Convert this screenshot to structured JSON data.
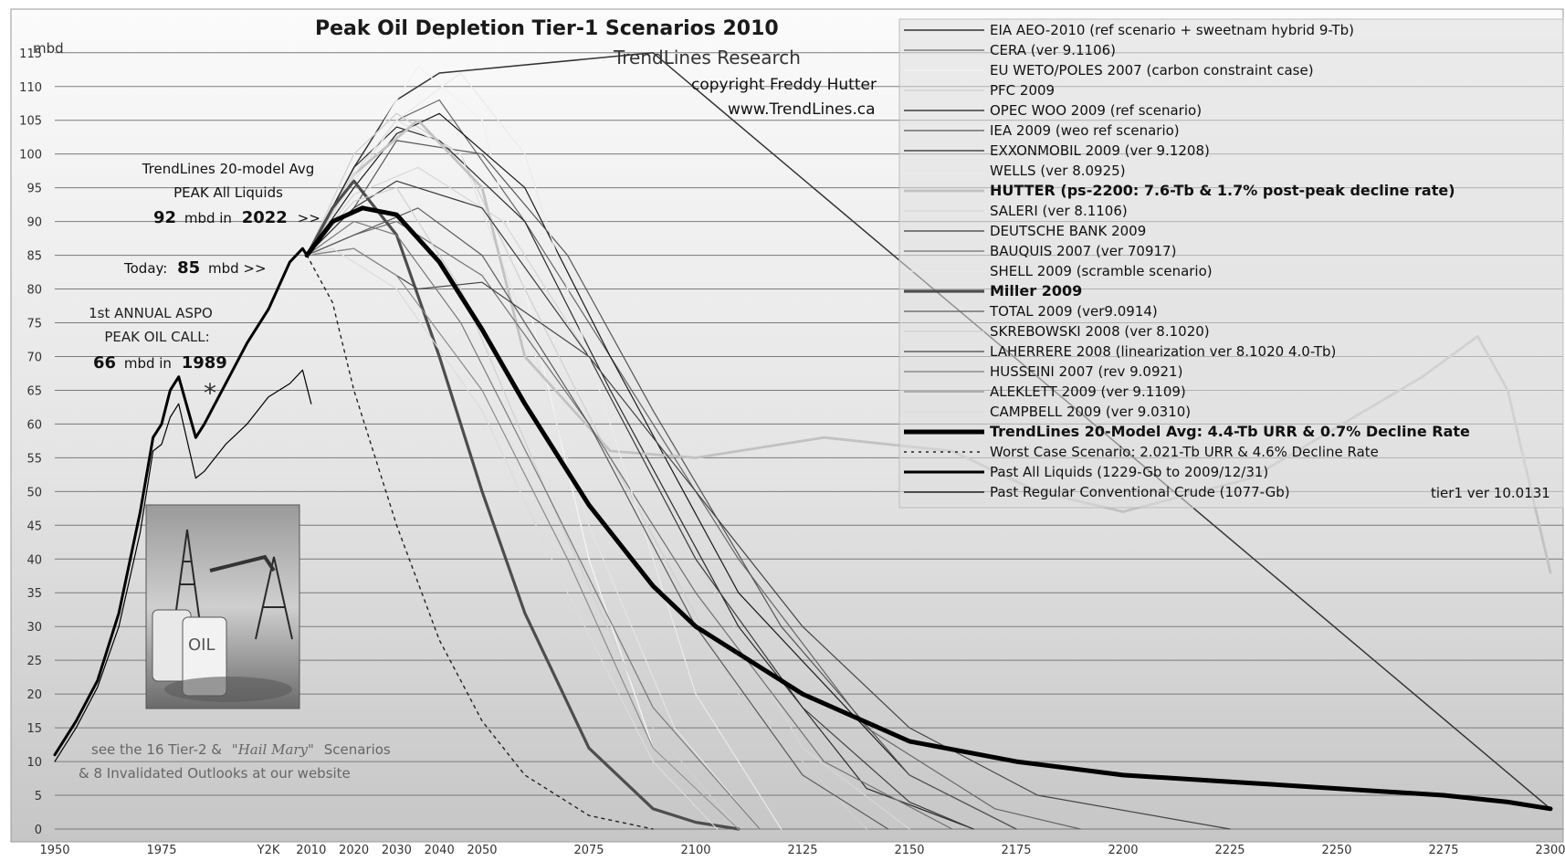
{
  "chart_data": {
    "type": "line",
    "title": "Peak Oil Depletion Tier-1 Scenarios 2010",
    "ylabel": "mbd",
    "xlim": [
      1950,
      2300
    ],
    "ylim": [
      0,
      117
    ],
    "grid": true,
    "legend_placement": "top-right",
    "x_ticks": [
      {
        "label": "1950",
        "value": 1950
      },
      {
        "label": "1975",
        "value": 1975
      },
      {
        "label": "Y2K",
        "value": 2000
      },
      {
        "label": "2010",
        "value": 2010
      },
      {
        "label": "2020",
        "value": 2020
      },
      {
        "label": "2030",
        "value": 2030
      },
      {
        "label": "2040",
        "value": 2040
      },
      {
        "label": "2050",
        "value": 2050
      },
      {
        "label": "2075",
        "value": 2075
      },
      {
        "label": "2100",
        "value": 2100
      },
      {
        "label": "2125",
        "value": 2125
      },
      {
        "label": "2150",
        "value": 2150
      },
      {
        "label": "2175",
        "value": 2175
      },
      {
        "label": "2200",
        "value": 2200
      },
      {
        "label": "2225",
        "value": 2225
      },
      {
        "label": "2250",
        "value": 2250
      },
      {
        "label": "2275",
        "value": 2275
      },
      {
        "label": "2300",
        "value": 2300
      }
    ],
    "y_ticks": [
      0,
      5,
      10,
      15,
      20,
      25,
      30,
      35,
      40,
      45,
      50,
      55,
      60,
      65,
      70,
      75,
      80,
      85,
      90,
      95,
      100,
      105,
      110,
      115
    ],
    "series": [
      {
        "name": "EIA AEO-2010  (ref scenario + sweetnam hybrid  9-Tb)",
        "color": "#333333",
        "width": 1.5,
        "style": "solid",
        "x": [
          2009,
          2020,
          2030,
          2040,
          2090,
          2300
        ],
        "y": [
          85,
          98,
          108,
          112,
          115,
          3
        ]
      },
      {
        "name": "CERA  (ver 9.1106)",
        "color": "#666666",
        "width": 1.2,
        "style": "solid",
        "x": [
          2009,
          2020,
          2030,
          2040,
          2060,
          2080,
          2110,
          2140,
          2170,
          2190
        ],
        "y": [
          85,
          97,
          105,
          108,
          90,
          70,
          40,
          15,
          3,
          0
        ]
      },
      {
        "name": "EU WETO/POLES 2007  (carbon constraint case)",
        "color": "#f2f2f2",
        "width": 1.5,
        "style": "solid",
        "x": [
          2009,
          2020,
          2030,
          2035,
          2050,
          2060,
          2075,
          2090,
          2110
        ],
        "y": [
          85,
          97,
          108,
          113,
          105,
          80,
          40,
          12,
          0
        ]
      },
      {
        "name": "PFC 2009",
        "color": "#cfcfcf",
        "width": 1.2,
        "style": "solid",
        "x": [
          2009,
          2020,
          2030,
          2045,
          2060,
          2080,
          2110,
          2140
        ],
        "y": [
          85,
          100,
          106,
          100,
          80,
          55,
          20,
          0
        ]
      },
      {
        "name": "OPEC WOO 2009  (ref scenario)",
        "color": "#1a1a1a",
        "width": 1.2,
        "style": "solid",
        "x": [
          2009,
          2020,
          2030,
          2040,
          2060,
          2080,
          2110,
          2150,
          2175
        ],
        "y": [
          85,
          95,
          103,
          106,
          95,
          70,
          35,
          8,
          0
        ]
      },
      {
        "name": "IEA 2009  (weo ref scenario)",
        "color": "#555555",
        "width": 1.2,
        "style": "solid",
        "x": [
          2009,
          2020,
          2030,
          2050,
          2070,
          2090,
          2120,
          2150,
          2175
        ],
        "y": [
          85,
          92,
          102,
          100,
          85,
          62,
          30,
          8,
          0
        ]
      },
      {
        "name": "EXXONMOBIL 2009  (ver 9.1208)",
        "color": "#2a2a2a",
        "width": 1.2,
        "style": "solid",
        "x": [
          2009,
          2020,
          2030,
          2040,
          2060,
          2080,
          2110,
          2140,
          2165
        ],
        "y": [
          85,
          98,
          104,
          102,
          90,
          65,
          30,
          6,
          0
        ]
      },
      {
        "name": "WELLS  (ver 8.0925)",
        "color": "#e4e4e4",
        "width": 1.2,
        "style": "solid",
        "x": [
          2009,
          2020,
          2030,
          2045,
          2060,
          2075,
          2095,
          2115
        ],
        "y": [
          85,
          96,
          105,
          100,
          75,
          45,
          15,
          0
        ]
      },
      {
        "name": "HUTTER  (ps-2200:  7.6-Tb & 1.7% post-peak decline rate)",
        "color": "#c2c2c2",
        "width": 2.8,
        "style": "solid",
        "x": [
          2009,
          2020,
          2035,
          2050,
          2060,
          2080,
          2100,
          2130,
          2160,
          2180,
          2200,
          2230,
          2270,
          2283,
          2290,
          2300
        ],
        "y": [
          85,
          97,
          105,
          95,
          70,
          56,
          55,
          58,
          56,
          50,
          47,
          52,
          67,
          73,
          65,
          38
        ]
      },
      {
        "name": "SALERI  (ver 8.1106)",
        "color": "#d6d6d6",
        "width": 1.2,
        "style": "solid",
        "x": [
          2009,
          2020,
          2035,
          2055,
          2075,
          2100,
          2125,
          2150
        ],
        "y": [
          85,
          94,
          98,
          90,
          70,
          40,
          12,
          0
        ]
      },
      {
        "name": "DEUTSCHE BANK 2009",
        "color": "#3a3a3a",
        "width": 1.2,
        "style": "solid",
        "x": [
          2009,
          2020,
          2030,
          2050,
          2075,
          2100,
          2125,
          2150,
          2165
        ],
        "y": [
          85,
          92,
          96,
          92,
          70,
          40,
          18,
          4,
          0
        ]
      },
      {
        "name": "BAUQUIS 2007  (ver 70917)",
        "color": "#707070",
        "width": 1.2,
        "style": "solid",
        "x": [
          2009,
          2020,
          2030,
          2050,
          2075,
          2100,
          2130,
          2160
        ],
        "y": [
          85,
          88,
          90,
          82,
          60,
          35,
          10,
          0
        ]
      },
      {
        "name": "SHELL 2009  (scramble scenario)",
        "color": "#eaeaea",
        "width": 1.2,
        "style": "solid",
        "x": [
          2009,
          2020,
          2030,
          2045,
          2060,
          2080,
          2100,
          2120
        ],
        "y": [
          85,
          97,
          105,
          112,
          100,
          60,
          20,
          0
        ]
      },
      {
        "name": "Miller 2009",
        "color": "#4d4d4d",
        "width": 3.2,
        "style": "solid",
        "x": [
          2009,
          2015,
          2020,
          2030,
          2040,
          2050,
          2060,
          2075,
          2090,
          2100,
          2110
        ],
        "y": [
          85,
          92,
          96,
          88,
          70,
          50,
          32,
          12,
          3,
          1,
          0
        ]
      },
      {
        "name": "TOTAL 2009  (ver9.0914)",
        "color": "#5a5a5a",
        "width": 1.2,
        "style": "solid",
        "x": [
          2009,
          2020,
          2035,
          2050,
          2075,
          2100,
          2125,
          2145
        ],
        "y": [
          85,
          88,
          92,
          85,
          60,
          30,
          8,
          0
        ]
      },
      {
        "name": "SKREBOWSKI 2008  (ver 8.1020)",
        "color": "#d0d0d0",
        "width": 1.2,
        "style": "solid",
        "x": [
          2009,
          2020,
          2030,
          2045,
          2065,
          2090,
          2110
        ],
        "y": [
          85,
          93,
          95,
          80,
          50,
          15,
          0
        ]
      },
      {
        "name": "LAHERRERE 2008  (linearization ver 8.1020  4.0-Tb)",
        "color": "#444444",
        "width": 1.2,
        "style": "solid",
        "x": [
          2009,
          2020,
          2035,
          2050,
          2075,
          2100,
          2125,
          2150,
          2180,
          2225
        ],
        "y": [
          85,
          86,
          80,
          81,
          70,
          50,
          30,
          15,
          5,
          0
        ]
      },
      {
        "name": "HUSSEINI  2007  (rev 9.0921)",
        "color": "#7a7a7a",
        "width": 1.2,
        "style": "solid",
        "x": [
          2009,
          2020,
          2030,
          2045,
          2065,
          2090,
          2115
        ],
        "y": [
          85,
          90,
          88,
          75,
          50,
          18,
          0
        ]
      },
      {
        "name": "ALEKLETT 2009  (ver 9.1109)",
        "color": "#8c8c8c",
        "width": 1.2,
        "style": "solid",
        "x": [
          2009,
          2020,
          2030,
          2050,
          2070,
          2090,
          2110
        ],
        "y": [
          85,
          86,
          82,
          65,
          40,
          12,
          0
        ]
      },
      {
        "name": "CAMPBELL 2009  (ver 9.0310)",
        "color": "#dcdcdc",
        "width": 1.2,
        "style": "solid",
        "x": [
          2009,
          2015,
          2030,
          2050,
          2070,
          2090,
          2105
        ],
        "y": [
          85,
          86,
          80,
          62,
          35,
          10,
          0
        ]
      },
      {
        "name": "TrendLines 20-Model Avg:  4.4-Tb URR & 0.7% Decline Rate",
        "color": "#000000",
        "width": 5,
        "style": "solid",
        "x": [
          2009,
          2015,
          2022,
          2030,
          2040,
          2050,
          2060,
          2075,
          2090,
          2100,
          2125,
          2150,
          2175,
          2200,
          2225,
          2250,
          2275,
          2290,
          2300
        ],
        "y": [
          85,
          90,
          92,
          91,
          84,
          74,
          63,
          48,
          36,
          30,
          20,
          13,
          10,
          8,
          7,
          6,
          5,
          4,
          3
        ]
      },
      {
        "name": "Worst Case Scenario:  2.021-Tb URR & 4.6% Decline Rate",
        "color": "#222222",
        "width": 1.4,
        "style": "dashed",
        "x": [
          2009,
          2015,
          2020,
          2030,
          2040,
          2050,
          2060,
          2075,
          2090
        ],
        "y": [
          85,
          78,
          65,
          45,
          28,
          16,
          8,
          2,
          0
        ]
      },
      {
        "name": "Past All Liquids  (1229-Gb to 2009/12/31)",
        "color": "#000000",
        "width": 3,
        "style": "solid",
        "x": [
          1950,
          1955,
          1960,
          1965,
          1970,
          1973,
          1975,
          1977,
          1979,
          1983,
          1985,
          1990,
          1995,
          2000,
          2005,
          2008,
          2009
        ],
        "y": [
          11,
          16,
          22,
          32,
          47,
          58,
          60,
          65,
          67,
          58,
          60,
          66,
          72,
          77,
          84,
          86,
          85
        ]
      },
      {
        "name": "Past Regular Conventional Crude  (1077-Gb)",
        "color": "#000000",
        "width": 1.2,
        "style": "solid",
        "x": [
          1950,
          1955,
          1960,
          1965,
          1970,
          1973,
          1975,
          1977,
          1979,
          1983,
          1985,
          1990,
          1995,
          2000,
          2005,
          2008,
          2010
        ],
        "y": [
          10,
          15,
          21,
          30,
          44,
          56,
          57,
          61,
          63,
          52,
          53,
          57,
          60,
          64,
          66,
          68,
          63
        ]
      }
    ],
    "annotations": {
      "publisher": "TrendLines Research",
      "copyright": "copyright Freddy Hutter",
      "website": "www.TrendLines.ca",
      "avg_line1": "TrendLines 20-model Avg",
      "avg_line2": "PEAK All Liquids",
      "avg_value": "92",
      "avg_mid": "mbd in",
      "avg_year": "2022",
      "avg_arrow": ">>",
      "today_prefix": "Today:",
      "today_value": "85",
      "today_suffix": "mbd >>",
      "aspo_line1": "1st ANNUAL ASPO",
      "aspo_line2": "PEAK OIL CALL:",
      "aspo_value": "66",
      "aspo_mid": "mbd in",
      "aspo_year": "1989",
      "asterisk": "*",
      "footer_part1": "see the 16 Tier-2  &",
      "footer_part2": "\"Hail Mary\"",
      "footer_part3": "Scenarios",
      "footer_line2": "& 8 Invalidated Outlooks at our website",
      "version": "tier1 ver 10.0131",
      "photo_label": "OIL"
    }
  }
}
